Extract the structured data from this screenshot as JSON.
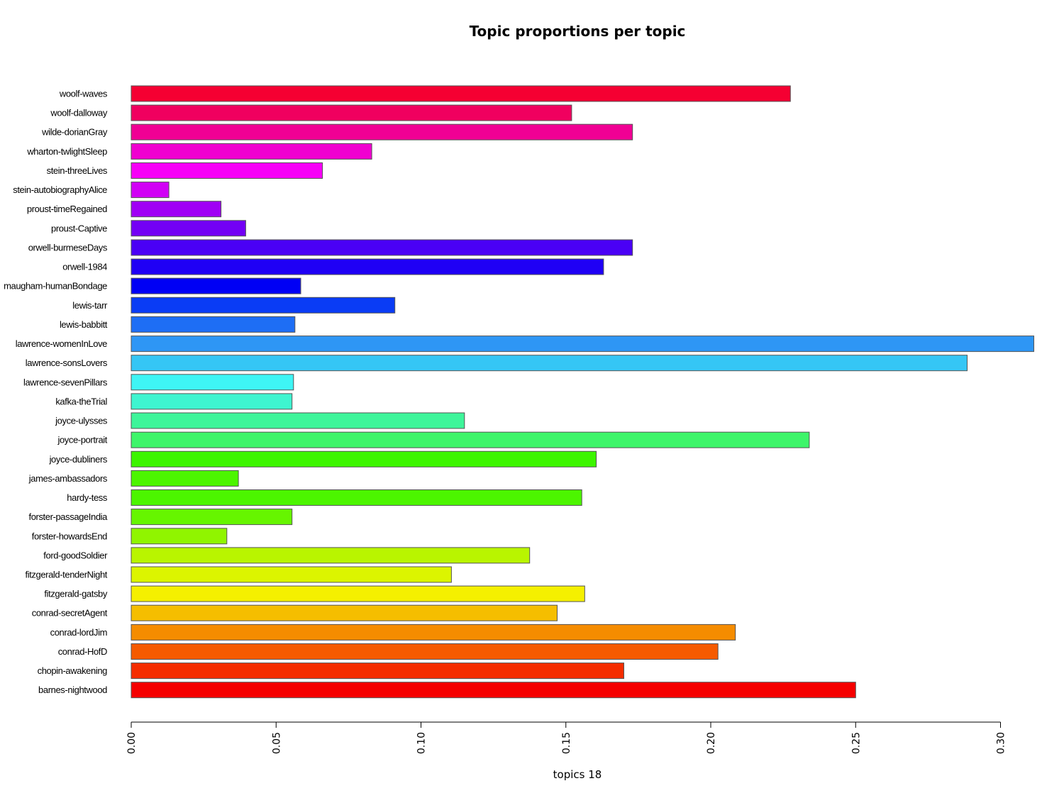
{
  "chart_data": {
    "type": "bar",
    "orientation": "horizontal",
    "title": "Topic proportions per topic",
    "xlabel": "topics 18",
    "ylabel": "",
    "xlim": [
      0,
      0.31
    ],
    "x_ticks": [
      "0.00",
      "0.05",
      "0.10",
      "0.15",
      "0.20",
      "0.25",
      "0.30"
    ],
    "grid": false,
    "categories": [
      "woolf-waves",
      "woolf-dalloway",
      "wilde-dorianGray",
      "wharton-twlightSleep",
      "stein-threeLives",
      "stein-autobiographyAlice",
      "proust-timeRegained",
      "proust-Captive",
      "orwell-burmeseDays",
      "orwell-1984",
      "maugham-humanBondage",
      "lewis-tarr",
      "lewis-babbitt",
      "lawrence-womenInLove",
      "lawrence-sonsLovers",
      "lawrence-sevenPillars",
      "kafka-theTrial",
      "joyce-ulysses",
      "joyce-portrait",
      "joyce-dubliners",
      "james-ambassadors",
      "hardy-tess",
      "forster-passageIndia",
      "forster-howardsEnd",
      "ford-goodSoldier",
      "fitzgerald-tenderNight",
      "fitzgerald-gatsby",
      "conrad-secretAgent",
      "conrad-lordJim",
      "conrad-HofD",
      "chopin-awakening",
      "barnes-nightwood"
    ],
    "values": [
      0.2275,
      0.152,
      0.173,
      0.083,
      0.066,
      0.013,
      0.031,
      0.0395,
      0.173,
      0.163,
      0.0585,
      0.091,
      0.0565,
      0.3115,
      0.2885,
      0.056,
      0.0555,
      0.115,
      0.234,
      0.1605,
      0.037,
      0.1555,
      0.0555,
      0.033,
      0.1375,
      0.1105,
      0.1565,
      0.147,
      0.2085,
      0.2025,
      0.17,
      0.25
    ],
    "colors": [
      "#F50032",
      "#F0005F",
      "#F00094",
      "#F000D0",
      "#F700F7",
      "#D100F5",
      "#A000F5",
      "#7300F5",
      "#4A00F5",
      "#1F00F5",
      "#0000F5",
      "#0A3CF5",
      "#1E6EF5",
      "#2E96F5",
      "#35C6F5",
      "#3EF5F5",
      "#3EF5D0",
      "#3EF59A",
      "#3EF56A",
      "#3CF500",
      "#4CF500",
      "#4CF500",
      "#66F500",
      "#90F500",
      "#B9F500",
      "#DCF500",
      "#F5F000",
      "#F5BE00",
      "#F58C00",
      "#F55A00",
      "#F52D00",
      "#F50000"
    ]
  }
}
